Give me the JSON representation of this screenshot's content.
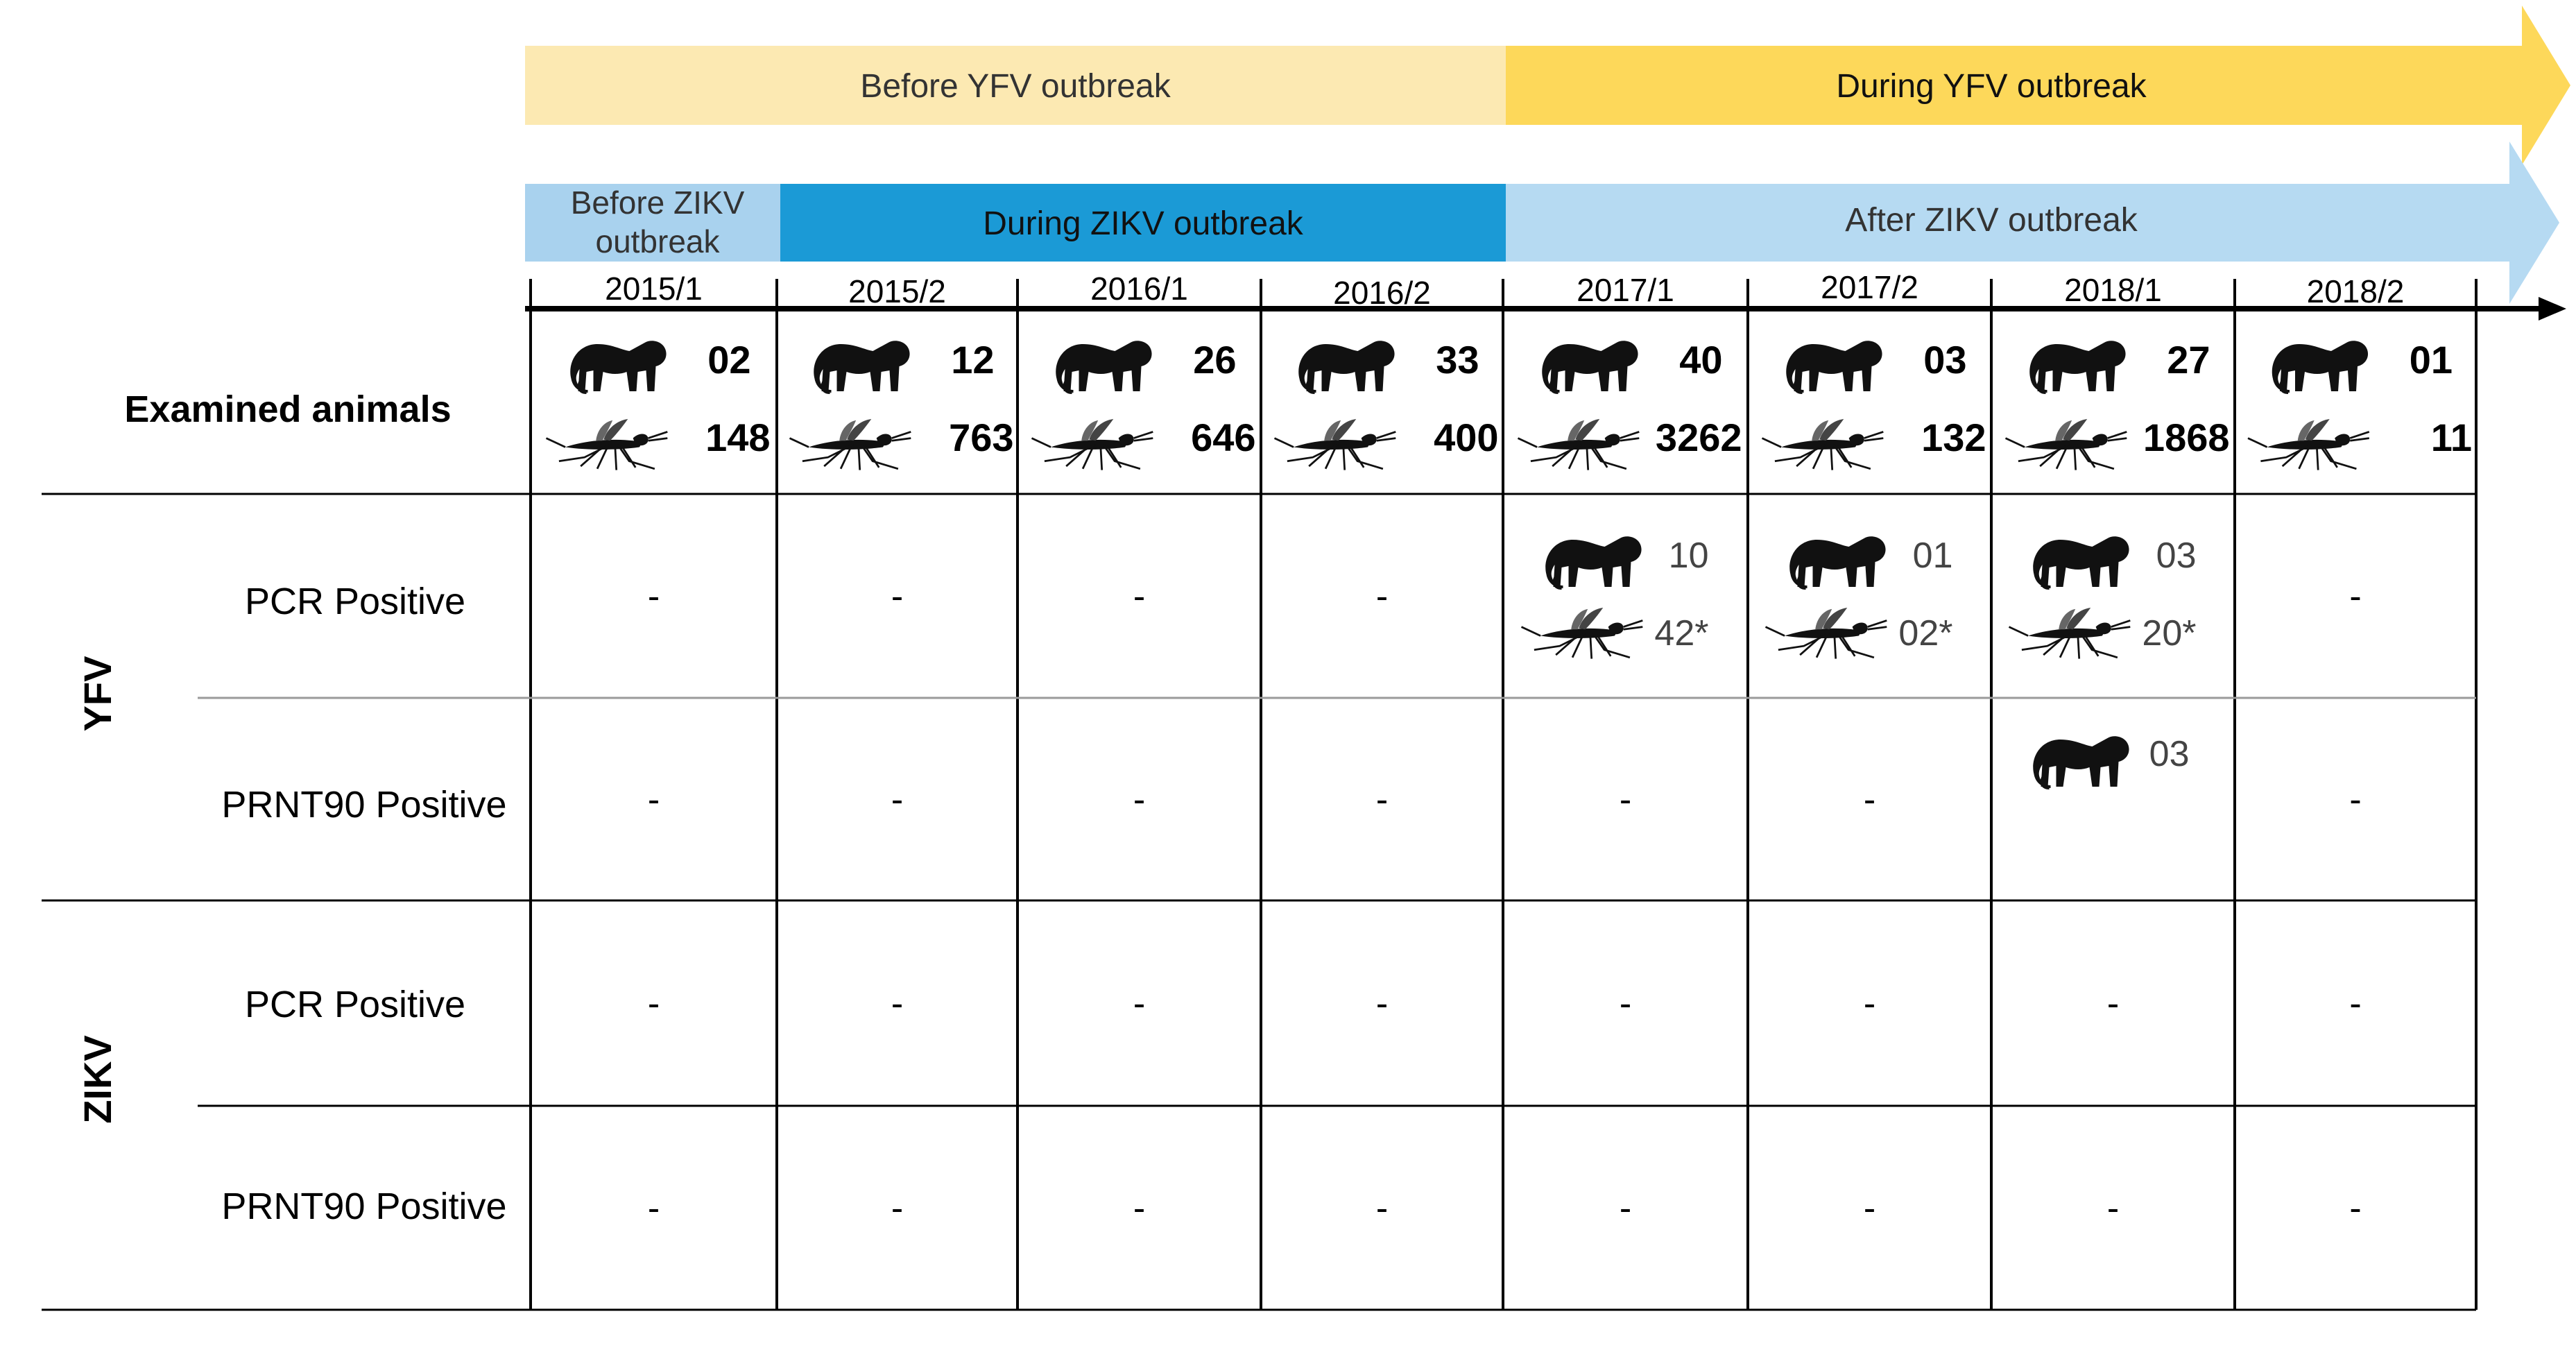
{
  "timeline": {
    "yfv": {
      "before_label": "Before YFV outbreak",
      "during_label": "During YFV outbreak"
    },
    "zikv": {
      "before_label_line1": "Before ZIKV",
      "before_label_line2": "outbreak",
      "during_label": "During ZIKV outbreak",
      "after_label": "After ZIKV outbreak"
    }
  },
  "periods": [
    "2015/1",
    "2015/2",
    "2016/1",
    "2016/2",
    "2017/1",
    "2017/2",
    "2018/1",
    "2018/2"
  ],
  "rows": {
    "examined_label": "Examined animals",
    "yfv_group": "YFV",
    "zikv_group": "ZIKV",
    "pcr_label": "PCR Positive",
    "prnt_label": "PRNT90 Positive"
  },
  "examined": {
    "primates": [
      "02",
      "12",
      "26",
      "33",
      "40",
      "03",
      "27",
      "01"
    ],
    "mosquitoes": [
      "148",
      "763",
      "646",
      "400",
      "3262",
      "132",
      "1868",
      "11"
    ]
  },
  "yfv_pcr": [
    {
      "dash": "-"
    },
    {
      "dash": "-"
    },
    {
      "dash": "-"
    },
    {
      "dash": "-"
    },
    {
      "primates": "10",
      "mosquitoes": "42*"
    },
    {
      "primates": "01",
      "mosquitoes": "02*"
    },
    {
      "primates": "03",
      "mosquitoes": "20*"
    },
    {
      "dash": "-"
    }
  ],
  "yfv_prnt": [
    {
      "dash": "-"
    },
    {
      "dash": "-"
    },
    {
      "dash": "-"
    },
    {
      "dash": "-"
    },
    {
      "dash": "-"
    },
    {
      "dash": "-"
    },
    {
      "primates": "03"
    },
    {
      "dash": "-"
    }
  ],
  "zikv_pcr": [
    "-",
    "-",
    "-",
    "-",
    "-",
    "-",
    "-",
    "-"
  ],
  "zikv_prnt": [
    "-",
    "-",
    "-",
    "-",
    "-",
    "-",
    "-",
    "-"
  ],
  "colors": {
    "yfv_before": "#FCE9B2",
    "yfv_during": "#FDD85A",
    "zikv_before": "#A9D2EE",
    "zikv_during": "#1B9AD6",
    "zikv_after": "#B6DAF2",
    "grid": "#000000",
    "grid_light": "#9A9A9A"
  },
  "icons": {
    "primate": "monkey-icon",
    "mosquito": "mosquito-icon"
  }
}
